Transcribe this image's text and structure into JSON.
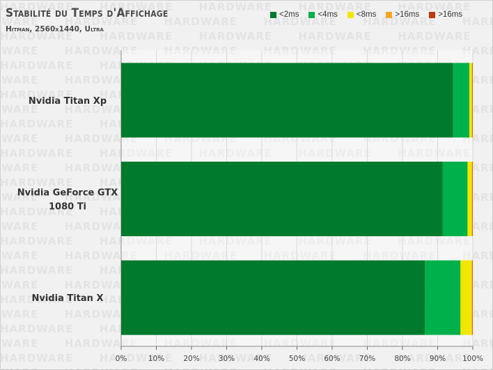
{
  "chart_data": {
    "type": "bar",
    "stacked": true,
    "orientation": "horizontal",
    "title": "Stabilité du Temps d'Affichage",
    "subtitle": "Hitman, 2560x1440, Ultra",
    "categories": [
      "Nvidia Titan Xp",
      "Nvidia GeForce GTX 1080 Ti",
      "Nvidia Titan X"
    ],
    "category_lines": [
      [
        "Nvidia Titan Xp"
      ],
      [
        "Nvidia GeForce GTX",
        "1080 Ti"
      ],
      [
        "Nvidia Titan X"
      ]
    ],
    "series": [
      {
        "name": "<2ms",
        "color": "#007a2c",
        "values": [
          94.4,
          91.4,
          86.4
        ]
      },
      {
        "name": "<4ms",
        "color": "#00b04a",
        "values": [
          4.6,
          7.1,
          10.1
        ]
      },
      {
        "name": "<8ms",
        "color": "#f2e600",
        "values": [
          0.7,
          1.2,
          3.2
        ]
      },
      {
        "name": ">16ms",
        "color": "#f5a623",
        "values": [
          0.2,
          0.2,
          0.2
        ]
      },
      {
        "name": ">16ms",
        "color": "#c0390b",
        "values": [
          0.1,
          0.1,
          0.1
        ]
      }
    ],
    "xlim": [
      0,
      100
    ],
    "x_ticks": [
      "0%",
      "10%",
      "20%",
      "30%",
      "40%",
      "50%",
      "60%",
      "70%",
      "80%",
      "90%",
      "100%"
    ],
    "grid": true,
    "legend_position": "top-right"
  },
  "watermark_text": "HARDWARE"
}
